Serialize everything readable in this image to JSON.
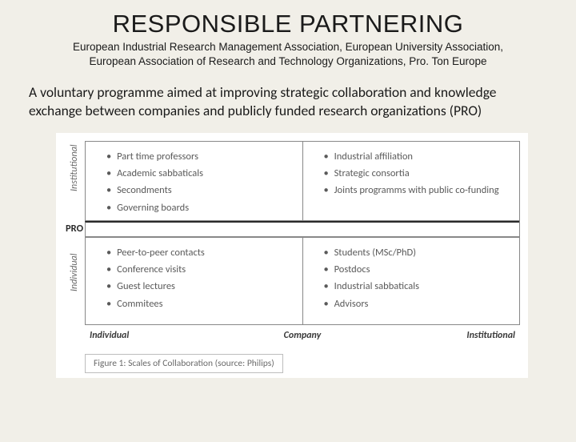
{
  "title": "RESPONSIBLE PARTNERING",
  "subtitle_line1": "European Industrial Research Management Association, European University Association,",
  "subtitle_line2": "European Association of Research and Technology  Organizations, Pro. Ton Europe",
  "description": "A voluntary programme aimed at improving strategic collaboration and knowledge exchange between companies and publicly funded research organizations (PRO)",
  "figure": {
    "y_top": "Institutional",
    "y_mid": "PRO",
    "y_bot": "Individual",
    "x_left": "Individual",
    "x_center": "Company",
    "x_right": "Institutional",
    "caption": "Figure 1: Scales of Collaboration (source: Philips)",
    "cells": {
      "tl": [
        "Part time professors",
        "Academic sabbaticals",
        "Secondments",
        "Governing boards"
      ],
      "tr": [
        "Industrial affiliation",
        "Strategic consortia",
        "Joints programms with public co-funding"
      ],
      "bl": [
        "Peer-to-peer contacts",
        "Conference visits",
        "Guest lectures",
        "Commitees"
      ],
      "br": [
        "Students (MSc/PhD)",
        "Postdocs",
        "Industrial sabbaticals",
        "Advisors"
      ]
    }
  },
  "colors": {
    "page_bg": "#f1efe8",
    "figure_bg": "#ffffff",
    "text_primary": "#1a1a1a",
    "text_muted": "#5a5a5a",
    "border": "#888888",
    "caption_border": "#bdbdbd"
  }
}
